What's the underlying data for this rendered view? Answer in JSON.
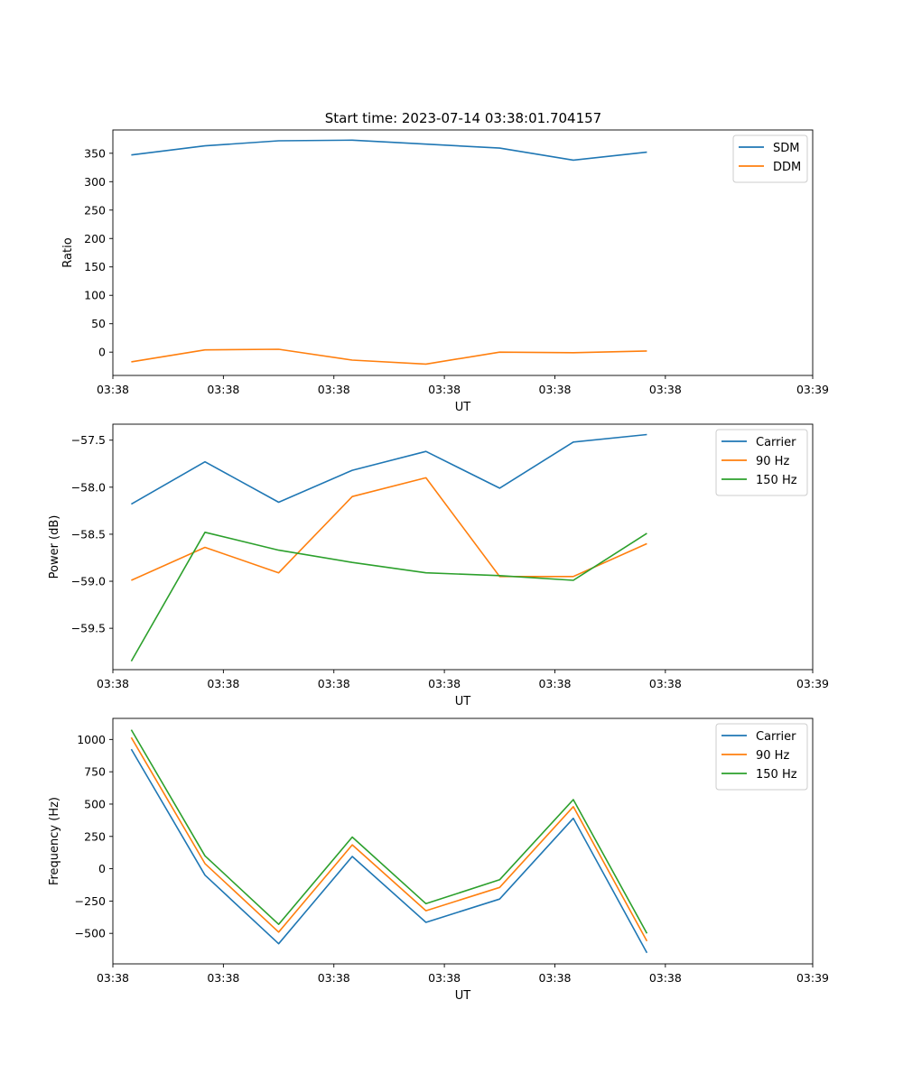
{
  "figure": {
    "title": "Start time: 2023-07-14 03:38:01.704157"
  },
  "colors": {
    "blue": "#1f77b4",
    "orange": "#ff7f0e",
    "green": "#2ca02c"
  },
  "chart_data": [
    {
      "type": "line",
      "title": "Start time: 2023-07-14 03:38:01.704157",
      "xlabel": "UT",
      "ylabel": "Ratio",
      "x": [
        1,
        2,
        3,
        4,
        5,
        6,
        7,
        8
      ],
      "xlim": [
        0.75,
        10.25
      ],
      "xticks": [
        0.75,
        2.25,
        3.75,
        5.25,
        6.75,
        8.25,
        10.25
      ],
      "xtick_labels": [
        "03:38",
        "03:38",
        "03:38",
        "03:38",
        "03:38",
        "03:38",
        "03:39"
      ],
      "ylim": [
        -41,
        391
      ],
      "yticks": [
        0,
        50,
        100,
        150,
        200,
        250,
        300,
        350
      ],
      "legend": "top-right",
      "grid": false,
      "series": [
        {
          "name": "SDM",
          "color": "#1f77b4",
          "values": [
            347,
            363,
            372,
            373,
            366,
            359,
            338,
            352
          ]
        },
        {
          "name": "DDM",
          "color": "#ff7f0e",
          "values": [
            -17,
            4,
            5,
            -14,
            -21,
            0,
            -1,
            2
          ]
        }
      ]
    },
    {
      "type": "line",
      "title": "",
      "xlabel": "UT",
      "ylabel": "Power (dB)",
      "x": [
        1,
        2,
        3,
        4,
        5,
        6,
        7,
        8
      ],
      "xlim": [
        0.75,
        10.25
      ],
      "xticks": [
        0.75,
        2.25,
        3.75,
        5.25,
        6.75,
        8.25,
        10.25
      ],
      "xtick_labels": [
        "03:38",
        "03:38",
        "03:38",
        "03:38",
        "03:38",
        "03:38",
        "03:39"
      ],
      "ylim": [
        -59.94,
        -57.33
      ],
      "yticks": [
        -59.5,
        -59.0,
        -58.5,
        -58.0,
        -57.5
      ],
      "ytick_labels": [
        "−59.5",
        "−59.0",
        "−58.5",
        "−58.0",
        "−57.5"
      ],
      "legend": "top-right",
      "grid": false,
      "series": [
        {
          "name": "Carrier",
          "color": "#1f77b4",
          "values": [
            -58.18,
            -57.73,
            -58.16,
            -57.82,
            -57.62,
            -58.01,
            -57.52,
            -57.44
          ]
        },
        {
          "name": "90 Hz",
          "color": "#ff7f0e",
          "values": [
            -58.99,
            -58.64,
            -58.91,
            -58.1,
            -57.9,
            -58.95,
            -58.95,
            -58.6
          ]
        },
        {
          "name": "150 Hz",
          "color": "#2ca02c",
          "values": [
            -59.85,
            -58.48,
            -58.67,
            -58.8,
            -58.91,
            -58.94,
            -58.99,
            -58.49
          ]
        }
      ]
    },
    {
      "type": "line",
      "title": "",
      "xlabel": "UT",
      "ylabel": "Frequency (Hz)",
      "x": [
        1,
        2,
        3,
        4,
        5,
        6,
        7,
        8
      ],
      "xlim": [
        0.75,
        10.25
      ],
      "xticks": [
        0.75,
        2.25,
        3.75,
        5.25,
        6.75,
        8.25,
        10.25
      ],
      "xtick_labels": [
        "03:38",
        "03:38",
        "03:38",
        "03:38",
        "03:38",
        "03:38",
        "03:39"
      ],
      "ylim": [
        -736,
        1163
      ],
      "yticks": [
        -500,
        -250,
        0,
        250,
        500,
        750,
        1000
      ],
      "ytick_labels": [
        "−500",
        "−250",
        "0",
        "250",
        "500",
        "750",
        "1000"
      ],
      "legend": "top-right",
      "grid": false,
      "series": [
        {
          "name": "Carrier",
          "color": "#1f77b4",
          "values": [
            925,
            -50,
            -580,
            95,
            -415,
            -235,
            390,
            -650
          ]
        },
        {
          "name": "90 Hz",
          "color": "#ff7f0e",
          "values": [
            1015,
            40,
            -490,
            185,
            -325,
            -145,
            480,
            -560
          ]
        },
        {
          "name": "150 Hz",
          "color": "#2ca02c",
          "values": [
            1075,
            100,
            -430,
            245,
            -270,
            -85,
            535,
            -500
          ]
        }
      ]
    }
  ]
}
